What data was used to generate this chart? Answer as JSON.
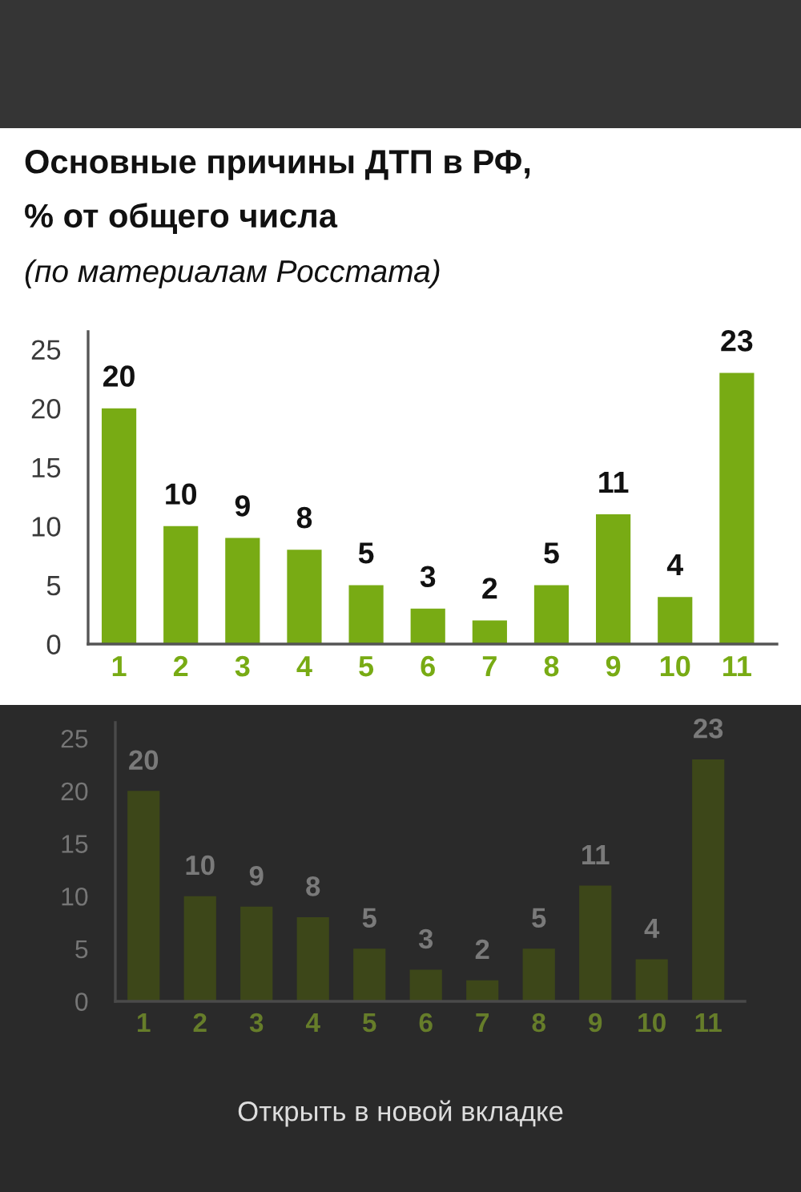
{
  "chart_data": [
    {
      "type": "bar",
      "title": "Основные причины ДТП в РФ,\n% от общего числа",
      "subtitle": "(по материалам Росстата)",
      "categories": [
        "1",
        "2",
        "3",
        "4",
        "5",
        "6",
        "7",
        "8",
        "9",
        "10",
        "11"
      ],
      "values": [
        20,
        10,
        9,
        8,
        5,
        3,
        2,
        5,
        11,
        4,
        23
      ],
      "color": "#78ab14",
      "ylim": [
        0,
        26.5
      ],
      "yticks": [
        0,
        5,
        10,
        15,
        20,
        25
      ],
      "data_labels": true
    },
    {
      "type": "bar",
      "categories": [
        "1",
        "2",
        "3",
        "4",
        "5",
        "6",
        "7",
        "8",
        "9",
        "10",
        "11"
      ],
      "values": [
        20,
        10,
        9,
        8,
        5,
        3,
        2,
        5,
        11,
        4,
        23
      ],
      "color": "#3d4719",
      "ylim": [
        0,
        26.5
      ],
      "yticks": [
        0,
        5,
        10,
        15,
        20,
        25
      ],
      "data_labels": true,
      "annotations": [
        "Открыть в новой вкладке"
      ]
    }
  ]
}
